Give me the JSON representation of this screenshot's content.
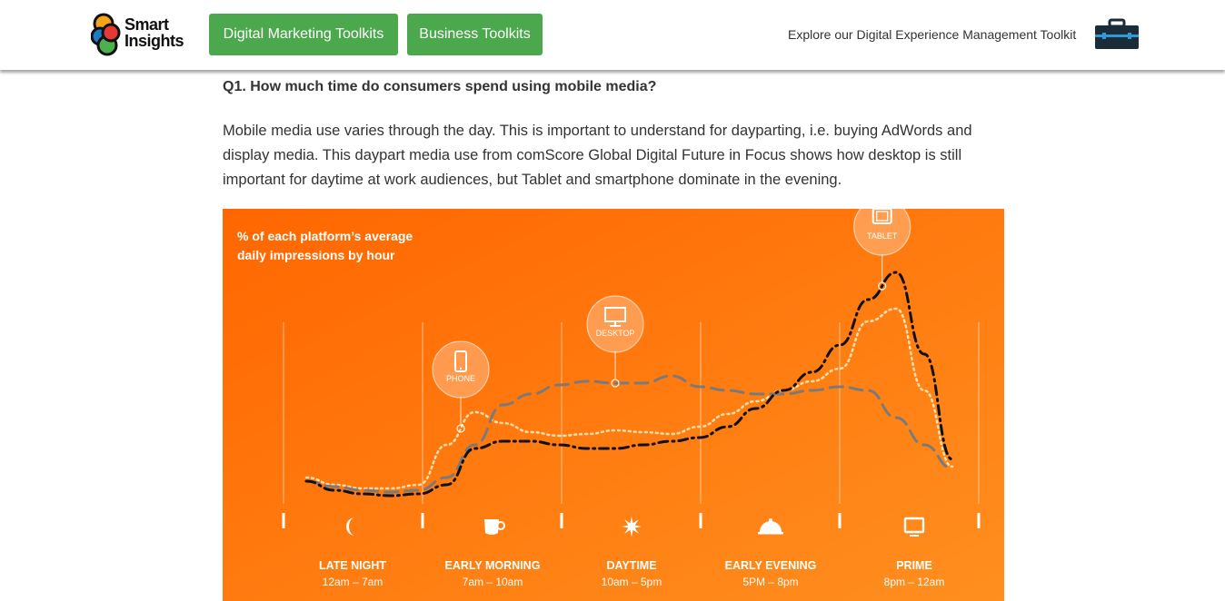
{
  "header": {
    "logo_line1": "Smart",
    "logo_line2": "Insights",
    "nav_buttons": [
      {
        "label": "Digital Marketing Toolkits"
      },
      {
        "label": "Business Toolkits"
      }
    ],
    "explore_text": "Explore our Digital Experience Management Toolkit",
    "explore_icon": "briefcase-icon"
  },
  "article": {
    "question": "Q1. How much time do consumers spend using mobile media?",
    "paragraph": "Mobile media use varies through the day. This is important to understand for dayparting, i.e. buying AdWords and display media. This daypart media use from comScore Global Digital Future in Focus shows how desktop is still important for daytime at work audiences, but Tablet and smartphone dominate in the evening."
  },
  "chart_data": {
    "type": "line",
    "title_line1": "% of each platform’s average",
    "title_line2": "daily impressions by hour",
    "background_colors": [
      "#ff6f00",
      "#ff8c1a"
    ],
    "x": [
      0,
      1,
      2,
      3,
      4,
      5,
      6,
      7,
      8,
      9,
      10,
      11,
      12,
      13,
      14,
      15,
      16,
      17,
      18,
      19,
      20,
      21,
      22,
      23
    ],
    "series": [
      {
        "name": "PHONE",
        "style": "dotted",
        "color": "#ffe0b0",
        "values": [
          22,
          18,
          16,
          16,
          18,
          40,
          58,
          52,
          47,
          45,
          46,
          48,
          47,
          46,
          50,
          57,
          64,
          70,
          75,
          82,
          108,
          115,
          70,
          28
        ]
      },
      {
        "name": "DESKTOP",
        "style": "dashed",
        "color": "#7a7a7a",
        "values": [
          20,
          17,
          15,
          14,
          15,
          22,
          40,
          62,
          68,
          73,
          75,
          74,
          74,
          78,
          72,
          70,
          68,
          68,
          70,
          72,
          70,
          55,
          40,
          27
        ]
      },
      {
        "name": "TABLET",
        "style": "dashdot",
        "color": "#111111",
        "values": [
          20,
          15,
          13,
          12,
          13,
          18,
          38,
          42,
          42,
          40,
          38,
          38,
          40,
          42,
          44,
          50,
          60,
          70,
          80,
          95,
          120,
          135,
          90,
          32
        ]
      }
    ],
    "callouts": [
      {
        "series": "PHONE",
        "label": "PHONE",
        "icon": "phone-icon",
        "at_hour": 5.5
      },
      {
        "series": "DESKTOP",
        "label": "DESKTOP",
        "icon": "monitor-icon",
        "at_hour": 11
      },
      {
        "series": "TABLET",
        "label": "TABLET",
        "icon": "tablet-icon",
        "at_hour": 20.5
      }
    ],
    "dayparts": [
      {
        "name": "LATE NIGHT",
        "range": "12am – 7am",
        "icon": "moon-icon"
      },
      {
        "name": "EARLY MORNING",
        "range": "7am – 10am",
        "icon": "coffee-cup-icon"
      },
      {
        "name": "DAYTIME",
        "range": "10am – 5pm",
        "icon": "sun-icon"
      },
      {
        "name": "EARLY EVENING",
        "range": "5PM – 8pm",
        "icon": "dinner-cloche-icon"
      },
      {
        "name": "PRIME",
        "range": "8pm – 12am",
        "icon": "tv-icon"
      }
    ]
  }
}
